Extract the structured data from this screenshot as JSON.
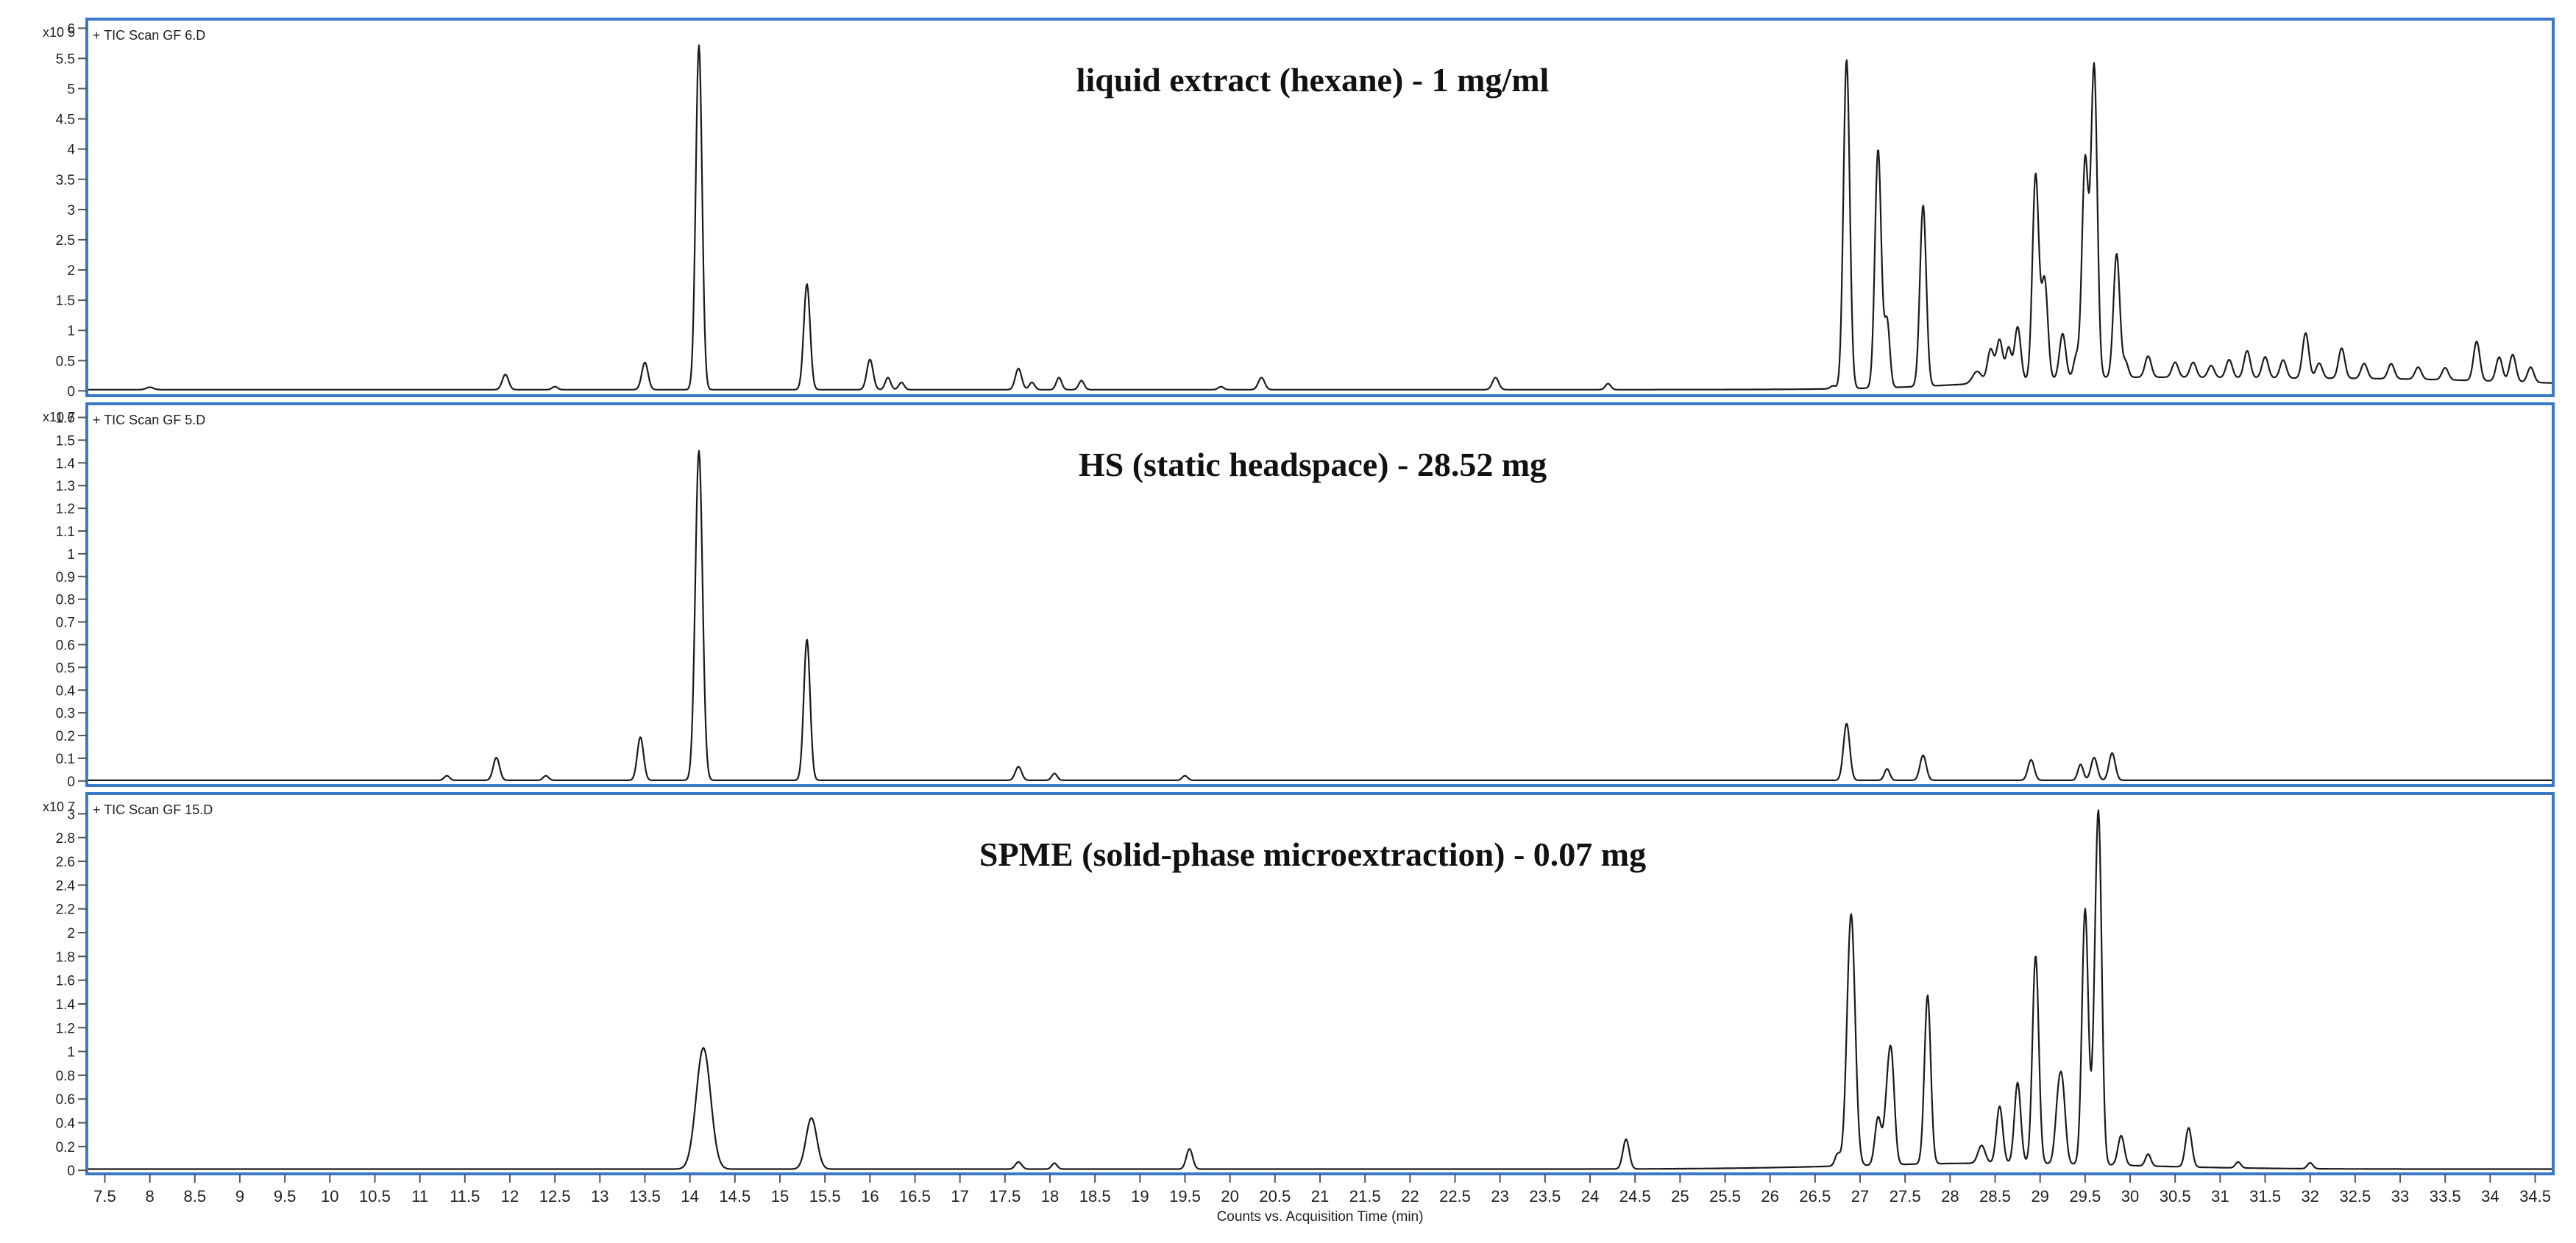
{
  "xaxis": {
    "label": "Counts vs. Acquisition Time (min)",
    "range": [
      7.3,
      34.7
    ],
    "ticks": [
      7.5,
      8,
      8.5,
      9,
      9.5,
      10,
      10.5,
      11,
      11.5,
      12,
      12.5,
      13,
      13.5,
      14,
      14.5,
      15,
      15.5,
      16,
      16.5,
      17,
      17.5,
      18,
      18.5,
      19,
      19.5,
      20,
      20.5,
      21,
      21.5,
      22,
      22.5,
      23,
      23.5,
      24,
      24.5,
      25,
      25.5,
      26,
      26.5,
      27,
      27.5,
      28,
      28.5,
      29,
      29.5,
      30,
      30.5,
      31,
      31.5,
      32,
      32.5,
      33,
      33.5,
      34,
      34.5
    ]
  },
  "chart_data": [
    {
      "type": "line",
      "title": "liquid extract (hexane) - 1 mg/ml",
      "scan_label": "+ TIC Scan GF 6.D",
      "y_exponent": "x10 5",
      "ylim": [
        -0.08,
        6.15
      ],
      "y_ticks": [
        0,
        0.5,
        1,
        1.5,
        2,
        2.5,
        3,
        3.5,
        4,
        4.5,
        5,
        5.5,
        6
      ],
      "y_tick_labels": [
        "0",
        "0.5",
        "1",
        "1.5",
        "2",
        "2.5",
        "3",
        "3.5",
        "4",
        "4.5",
        "5",
        "5.5",
        "6"
      ],
      "baseline": 0.02,
      "peaks": [
        {
          "x": 8.0,
          "y": 0.04,
          "w": 0.04
        },
        {
          "x": 11.95,
          "y": 0.25,
          "w": 0.035
        },
        {
          "x": 12.5,
          "y": 0.05,
          "w": 0.03
        },
        {
          "x": 13.5,
          "y": 0.45,
          "w": 0.035
        },
        {
          "x": 14.1,
          "y": 5.7,
          "w": 0.035
        },
        {
          "x": 15.3,
          "y": 1.75,
          "w": 0.035
        },
        {
          "x": 16.0,
          "y": 0.5,
          "w": 0.035
        },
        {
          "x": 16.2,
          "y": 0.2,
          "w": 0.03
        },
        {
          "x": 16.35,
          "y": 0.12,
          "w": 0.03
        },
        {
          "x": 17.65,
          "y": 0.35,
          "w": 0.035
        },
        {
          "x": 17.8,
          "y": 0.12,
          "w": 0.03
        },
        {
          "x": 18.1,
          "y": 0.2,
          "w": 0.03
        },
        {
          "x": 18.35,
          "y": 0.15,
          "w": 0.03
        },
        {
          "x": 19.9,
          "y": 0.05,
          "w": 0.03
        },
        {
          "x": 20.35,
          "y": 0.2,
          "w": 0.035
        },
        {
          "x": 22.95,
          "y": 0.2,
          "w": 0.035
        },
        {
          "x": 24.2,
          "y": 0.1,
          "w": 0.03
        },
        {
          "x": 26.7,
          "y": 0.05,
          "w": 0.03
        },
        {
          "x": 26.85,
          "y": 5.45,
          "w": 0.035
        },
        {
          "x": 27.2,
          "y": 3.95,
          "w": 0.035
        },
        {
          "x": 27.3,
          "y": 1.1,
          "w": 0.03
        },
        {
          "x": 27.7,
          "y": 3.0,
          "w": 0.035
        },
        {
          "x": 28.3,
          "y": 0.2,
          "w": 0.05
        },
        {
          "x": 28.45,
          "y": 0.55,
          "w": 0.035
        },
        {
          "x": 28.55,
          "y": 0.7,
          "w": 0.035
        },
        {
          "x": 28.65,
          "y": 0.55,
          "w": 0.03
        },
        {
          "x": 28.75,
          "y": 0.9,
          "w": 0.035
        },
        {
          "x": 28.95,
          "y": 3.4,
          "w": 0.035
        },
        {
          "x": 29.05,
          "y": 1.65,
          "w": 0.035
        },
        {
          "x": 29.25,
          "y": 0.75,
          "w": 0.035
        },
        {
          "x": 29.4,
          "y": 0.35,
          "w": 0.03
        },
        {
          "x": 29.5,
          "y": 3.6,
          "w": 0.035
        },
        {
          "x": 29.6,
          "y": 5.15,
          "w": 0.035
        },
        {
          "x": 29.85,
          "y": 2.05,
          "w": 0.035
        },
        {
          "x": 29.95,
          "y": 0.25,
          "w": 0.03
        },
        {
          "x": 30.2,
          "y": 0.35,
          "w": 0.035
        },
        {
          "x": 30.5,
          "y": 0.25,
          "w": 0.035
        },
        {
          "x": 30.7,
          "y": 0.25,
          "w": 0.035
        },
        {
          "x": 30.9,
          "y": 0.2,
          "w": 0.035
        },
        {
          "x": 31.1,
          "y": 0.3,
          "w": 0.035
        },
        {
          "x": 31.3,
          "y": 0.45,
          "w": 0.035
        },
        {
          "x": 31.5,
          "y": 0.35,
          "w": 0.035
        },
        {
          "x": 31.7,
          "y": 0.3,
          "w": 0.035
        },
        {
          "x": 31.95,
          "y": 0.75,
          "w": 0.035
        },
        {
          "x": 32.1,
          "y": 0.25,
          "w": 0.035
        },
        {
          "x": 32.35,
          "y": 0.5,
          "w": 0.035
        },
        {
          "x": 32.6,
          "y": 0.25,
          "w": 0.035
        },
        {
          "x": 32.9,
          "y": 0.25,
          "w": 0.035
        },
        {
          "x": 33.2,
          "y": 0.2,
          "w": 0.035
        },
        {
          "x": 33.5,
          "y": 0.2,
          "w": 0.035
        },
        {
          "x": 33.85,
          "y": 0.65,
          "w": 0.035
        },
        {
          "x": 34.1,
          "y": 0.4,
          "w": 0.035
        },
        {
          "x": 34.25,
          "y": 0.45,
          "w": 0.035
        },
        {
          "x": 34.45,
          "y": 0.25,
          "w": 0.035
        }
      ],
      "humps": [
        {
          "x": 29.5,
          "y": 0.12,
          "w": 1.2
        },
        {
          "x": 32.5,
          "y": 0.18,
          "w": 2.2
        }
      ]
    },
    {
      "type": "line",
      "title": "HS (static headspace) - 28.52 mg",
      "scan_label": "+ TIC Scan GF 5.D",
      "y_exponent": "x10 7",
      "ylim": [
        -0.02,
        1.66
      ],
      "y_ticks": [
        0,
        0.1,
        0.2,
        0.3,
        0.4,
        0.5,
        0.6,
        0.7,
        0.8,
        0.9,
        1,
        1.1,
        1.2,
        1.3,
        1.4,
        1.5,
        1.6
      ],
      "y_tick_labels": [
        "0",
        "0.1",
        "0.2",
        "0.3",
        "0.4",
        "0.5",
        "0.6",
        "0.7",
        "0.8",
        "0.9",
        "1",
        "1.1",
        "1.2",
        "1.3",
        "1.4",
        "1.5",
        "1.6"
      ],
      "baseline": 0.003,
      "peaks": [
        {
          "x": 11.3,
          "y": 0.02,
          "w": 0.03
        },
        {
          "x": 11.85,
          "y": 0.1,
          "w": 0.035
        },
        {
          "x": 12.4,
          "y": 0.02,
          "w": 0.03
        },
        {
          "x": 13.45,
          "y": 0.19,
          "w": 0.035
        },
        {
          "x": 14.1,
          "y": 1.45,
          "w": 0.04
        },
        {
          "x": 15.3,
          "y": 0.62,
          "w": 0.035
        },
        {
          "x": 17.65,
          "y": 0.06,
          "w": 0.035
        },
        {
          "x": 18.05,
          "y": 0.03,
          "w": 0.03
        },
        {
          "x": 19.5,
          "y": 0.02,
          "w": 0.03
        },
        {
          "x": 26.85,
          "y": 0.25,
          "w": 0.035
        },
        {
          "x": 27.3,
          "y": 0.05,
          "w": 0.03
        },
        {
          "x": 27.7,
          "y": 0.11,
          "w": 0.035
        },
        {
          "x": 28.9,
          "y": 0.09,
          "w": 0.035
        },
        {
          "x": 29.45,
          "y": 0.07,
          "w": 0.03
        },
        {
          "x": 29.6,
          "y": 0.1,
          "w": 0.035
        },
        {
          "x": 29.8,
          "y": 0.12,
          "w": 0.035
        }
      ],
      "humps": []
    },
    {
      "type": "line",
      "title": "SPME (solid-phase microextraction) - 0.07 mg",
      "scan_label": "+ TIC Scan GF 15.D",
      "y_exponent": "x10 7",
      "ylim": [
        -0.03,
        3.17
      ],
      "y_ticks": [
        0,
        0.2,
        0.4,
        0.6,
        0.8,
        1,
        1.2,
        1.4,
        1.6,
        1.8,
        2,
        2.2,
        2.4,
        2.6,
        2.8,
        3
      ],
      "y_tick_labels": [
        "0",
        "0.2",
        "0.4",
        "0.6",
        "0.8",
        "1",
        "1.2",
        "1.4",
        "1.6",
        "1.8",
        "2",
        "2.2",
        "2.4",
        "2.6",
        "2.8",
        "3"
      ],
      "baseline": 0.01,
      "peaks": [
        {
          "x": 14.15,
          "y": 1.02,
          "w": 0.08
        },
        {
          "x": 15.35,
          "y": 0.43,
          "w": 0.06
        },
        {
          "x": 17.65,
          "y": 0.06,
          "w": 0.035
        },
        {
          "x": 18.05,
          "y": 0.05,
          "w": 0.03
        },
        {
          "x": 19.55,
          "y": 0.17,
          "w": 0.035
        },
        {
          "x": 24.4,
          "y": 0.25,
          "w": 0.035
        },
        {
          "x": 26.75,
          "y": 0.1,
          "w": 0.03
        },
        {
          "x": 26.9,
          "y": 2.12,
          "w": 0.045
        },
        {
          "x": 27.2,
          "y": 0.4,
          "w": 0.035
        },
        {
          "x": 27.3,
          "y": 0.45,
          "w": 0.035
        },
        {
          "x": 27.35,
          "y": 0.8,
          "w": 0.035
        },
        {
          "x": 27.75,
          "y": 1.42,
          "w": 0.035
        },
        {
          "x": 28.35,
          "y": 0.15,
          "w": 0.04
        },
        {
          "x": 28.55,
          "y": 0.48,
          "w": 0.035
        },
        {
          "x": 28.75,
          "y": 0.68,
          "w": 0.035
        },
        {
          "x": 28.95,
          "y": 1.75,
          "w": 0.035
        },
        {
          "x": 29.2,
          "y": 0.45,
          "w": 0.035
        },
        {
          "x": 29.25,
          "y": 0.55,
          "w": 0.035
        },
        {
          "x": 29.5,
          "y": 2.15,
          "w": 0.035
        },
        {
          "x": 29.6,
          "y": 0.5,
          "w": 0.03
        },
        {
          "x": 29.65,
          "y": 2.85,
          "w": 0.035
        },
        {
          "x": 29.9,
          "y": 0.25,
          "w": 0.035
        },
        {
          "x": 30.2,
          "y": 0.1,
          "w": 0.03
        },
        {
          "x": 30.65,
          "y": 0.33,
          "w": 0.035
        },
        {
          "x": 31.2,
          "y": 0.05,
          "w": 0.03
        },
        {
          "x": 32.0,
          "y": 0.05,
          "w": 0.03
        }
      ],
      "humps": [
        {
          "x": 28.5,
          "y": 0.05,
          "w": 1.5
        }
      ]
    }
  ]
}
